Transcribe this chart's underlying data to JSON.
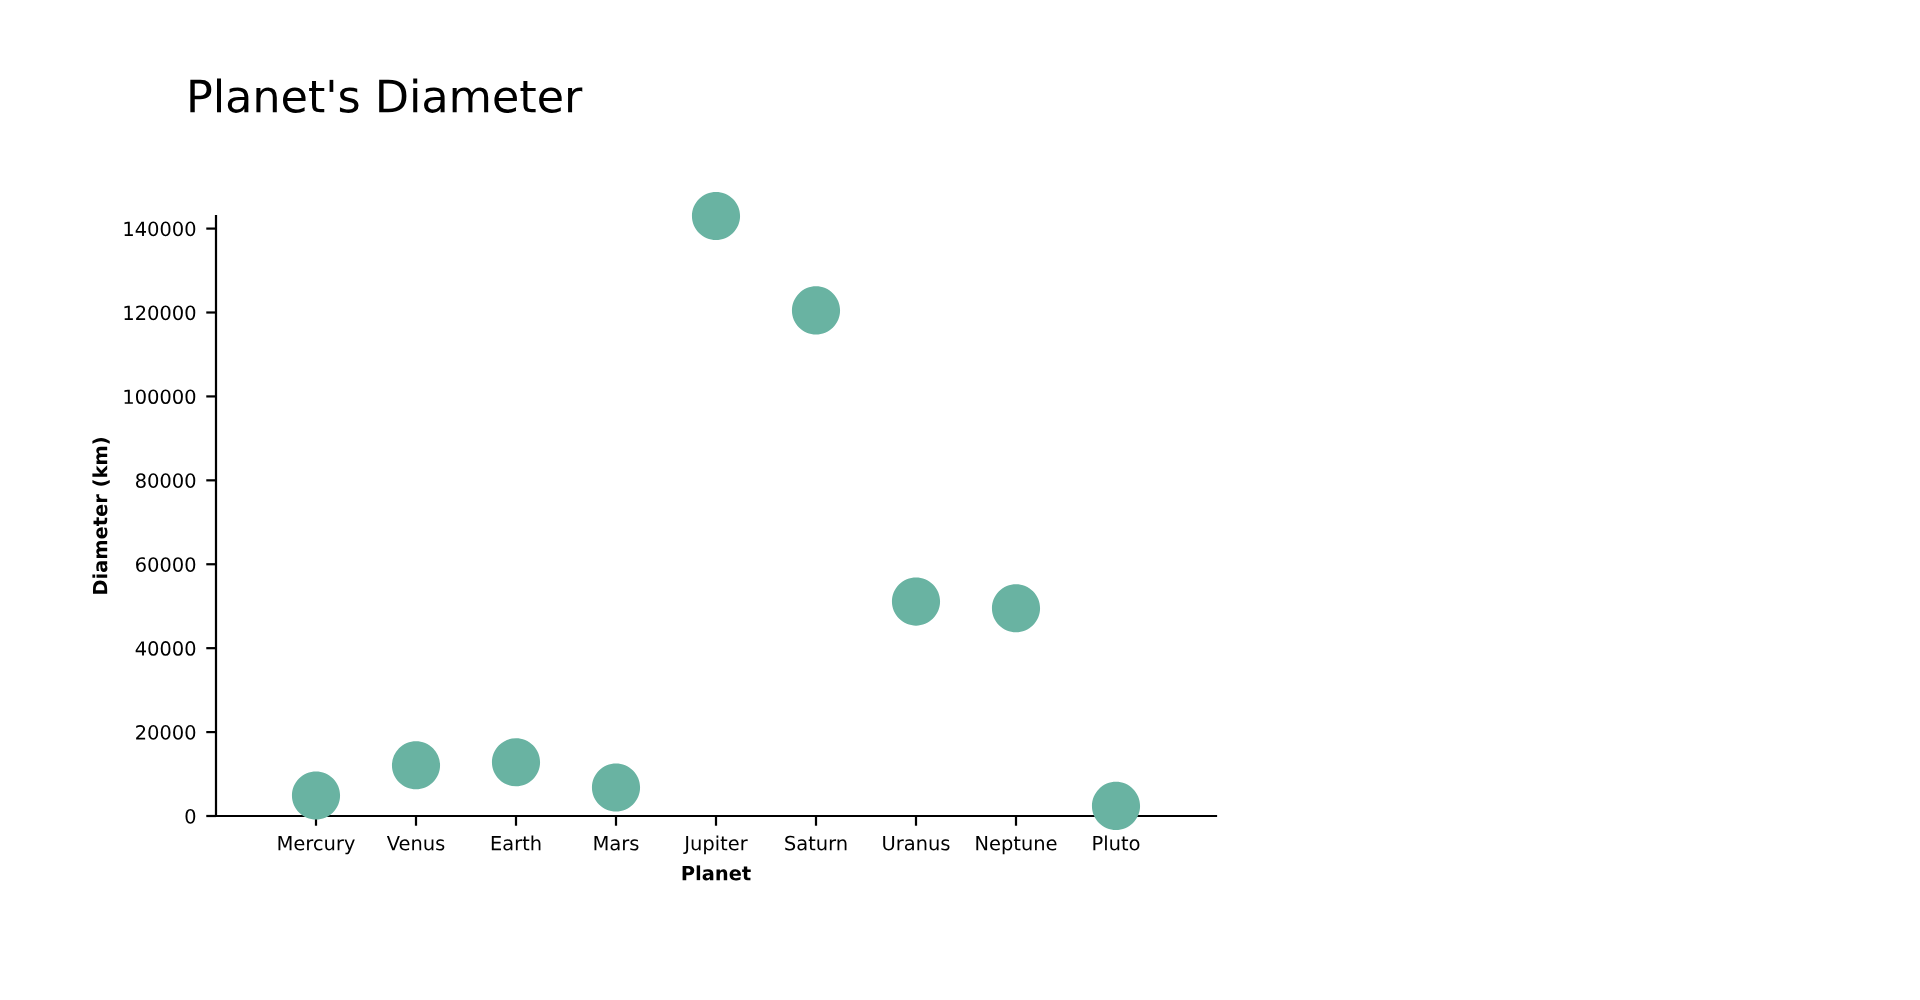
{
  "chart_data": {
    "type": "scatter",
    "title": "Planet's Diameter",
    "xlabel": "Planet",
    "ylabel": "Diameter (km)",
    "categories": [
      "Mercury",
      "Venus",
      "Earth",
      "Mars",
      "Jupiter",
      "Saturn",
      "Uranus",
      "Neptune",
      "Pluto"
    ],
    "series": [
      {
        "color": "#69b3a2",
        "values": [
          4900,
          12100,
          12800,
          6800,
          143000,
          120500,
          51100,
          49500,
          2400
        ]
      }
    ],
    "ylim": [
      0,
      143000
    ],
    "yticks": [
      0,
      20000,
      40000,
      60000,
      80000,
      100000,
      120000,
      140000
    ],
    "grid": false,
    "legend": false,
    "marker": "circle"
  }
}
